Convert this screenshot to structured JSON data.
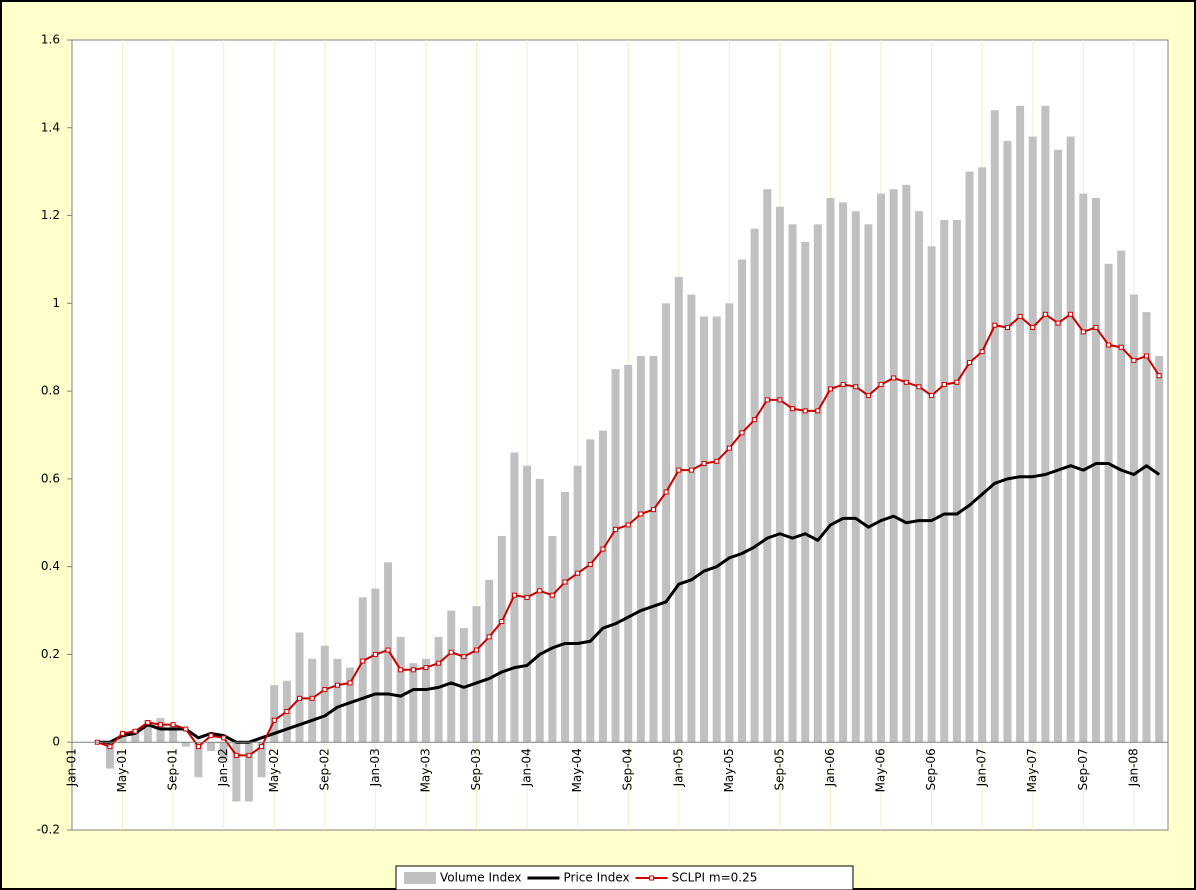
{
  "chart_data": {
    "type": "bar-line",
    "categories": [
      "Jan-01",
      null,
      null,
      null,
      "May-01",
      null,
      null,
      null,
      "Sep-01",
      null,
      null,
      null,
      "Jan-02",
      null,
      null,
      null,
      "May-02",
      null,
      null,
      null,
      "Sep-02",
      null,
      null,
      null,
      "Jan-03",
      null,
      null,
      null,
      "May-03",
      null,
      null,
      null,
      "Sep-03",
      null,
      null,
      null,
      "Jan-04",
      null,
      null,
      null,
      "May-04",
      null,
      null,
      null,
      "Sep-04",
      null,
      null,
      null,
      "Jan-05",
      null,
      null,
      null,
      "May-05",
      null,
      null,
      null,
      "Sep-05",
      null,
      null,
      null,
      "Jan-06",
      null,
      null,
      null,
      "May-06",
      null,
      null,
      null,
      "Sep-06",
      null,
      null,
      null,
      "Jan-07",
      null,
      null,
      null,
      "May-07",
      null,
      null,
      null,
      "Sep-07",
      null,
      null,
      null,
      "Jan-08",
      null,
      null
    ],
    "series": [
      {
        "name": "Volume Index",
        "kind": "bar",
        "color": "#c0c0c0",
        "values": [
          null,
          null,
          0,
          -0.06,
          0.02,
          0.03,
          0.05,
          0.055,
          0.04,
          -0.01,
          -0.08,
          -0.02,
          -0.04,
          -0.135,
          -0.135,
          -0.08,
          0.13,
          0.14,
          0.25,
          0.19,
          0.22,
          0.19,
          0.17,
          0.33,
          0.35,
          0.41,
          0.24,
          0.18,
          0.19,
          0.24,
          0.3,
          0.26,
          0.31,
          0.37,
          0.47,
          0.66,
          0.63,
          0.6,
          0.47,
          0.57,
          0.63,
          0.69,
          0.71,
          0.85,
          0.86,
          0.88,
          0.88,
          1.0,
          1.06,
          1.02,
          0.97,
          0.97,
          1.0,
          1.1,
          1.17,
          1.26,
          1.22,
          1.18,
          1.14,
          1.18,
          1.24,
          1.23,
          1.21,
          1.18,
          1.25,
          1.26,
          1.27,
          1.21,
          1.13,
          1.19,
          1.19,
          1.3,
          1.31,
          1.44,
          1.37,
          1.45,
          1.38,
          1.45,
          1.35,
          1.38,
          1.25,
          1.24,
          1.09,
          1.12,
          1.02,
          0.98,
          0.88
        ]
      },
      {
        "name": "Price Index",
        "kind": "line",
        "color": "#000000",
        "values": [
          null,
          null,
          0,
          0,
          0.015,
          0.02,
          0.04,
          0.03,
          0.03,
          0.03,
          0.01,
          0.02,
          0.015,
          0,
          0,
          0.01,
          0.02,
          0.03,
          0.04,
          0.05,
          0.06,
          0.08,
          0.09,
          0.1,
          0.11,
          0.11,
          0.105,
          0.12,
          0.12,
          0.125,
          0.135,
          0.125,
          0.135,
          0.145,
          0.16,
          0.17,
          0.175,
          0.2,
          0.215,
          0.225,
          0.225,
          0.23,
          0.26,
          0.27,
          0.285,
          0.3,
          0.31,
          0.32,
          0.36,
          0.37,
          0.39,
          0.4,
          0.42,
          0.43,
          0.445,
          0.465,
          0.475,
          0.465,
          0.475,
          0.46,
          0.495,
          0.51,
          0.51,
          0.49,
          0.505,
          0.515,
          0.5,
          0.505,
          0.505,
          0.52,
          0.52,
          0.54,
          0.565,
          0.59,
          0.6,
          0.605,
          0.605,
          0.61,
          0.62,
          0.63,
          0.62,
          0.635,
          0.635,
          0.62,
          0.61,
          0.63,
          0.61
        ]
      },
      {
        "name": "SCLPI m=0.25",
        "kind": "line-marker",
        "color": "#cc0000",
        "values": [
          null,
          null,
          0,
          -0.01,
          0.02,
          0.025,
          0.045,
          0.04,
          0.04,
          0.03,
          -0.01,
          0.015,
          0.01,
          -0.03,
          -0.03,
          -0.01,
          0.05,
          0.07,
          0.1,
          0.1,
          0.12,
          0.13,
          0.135,
          0.185,
          0.2,
          0.21,
          0.165,
          0.165,
          0.17,
          0.18,
          0.205,
          0.195,
          0.21,
          0.24,
          0.275,
          0.335,
          0.33,
          0.345,
          0.335,
          0.365,
          0.385,
          0.405,
          0.44,
          0.485,
          0.495,
          0.52,
          0.53,
          0.57,
          0.62,
          0.62,
          0.635,
          0.64,
          0.67,
          0.705,
          0.735,
          0.78,
          0.78,
          0.76,
          0.755,
          0.755,
          0.805,
          0.815,
          0.81,
          0.79,
          0.815,
          0.83,
          0.82,
          0.81,
          0.79,
          0.815,
          0.82,
          0.865,
          0.89,
          0.95,
          0.945,
          0.97,
          0.945,
          0.975,
          0.955,
          0.975,
          0.935,
          0.945,
          0.905,
          0.9,
          0.87,
          0.88,
          0.835
        ]
      }
    ],
    "ylim": [
      -0.2,
      1.6
    ],
    "yticks": [
      -0.2,
      0,
      0.2,
      0.4,
      0.6,
      0.8,
      1,
      1.2,
      1.4,
      1.6
    ],
    "grid": "x",
    "grid_color": "#f0f0c0",
    "legend": "bottom"
  }
}
